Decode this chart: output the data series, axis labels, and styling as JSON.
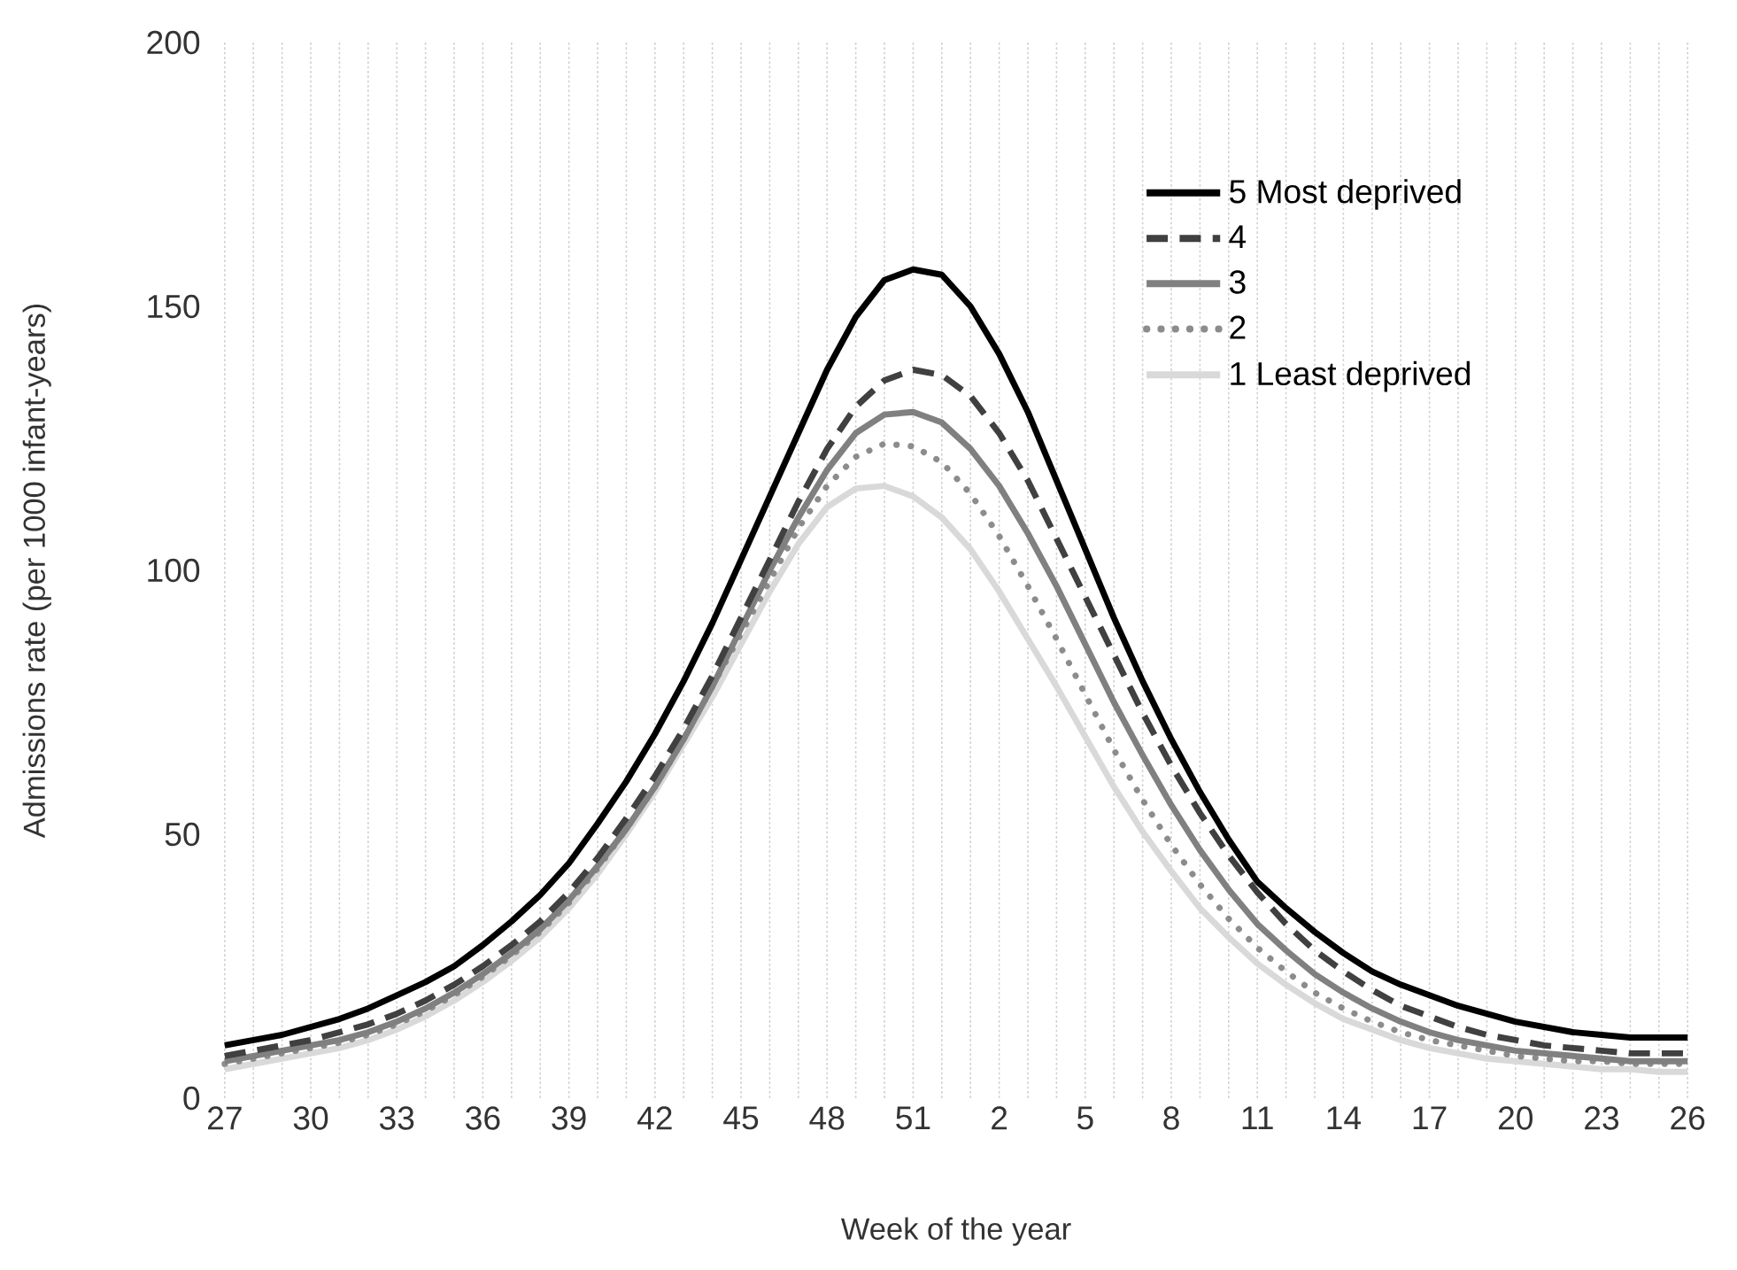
{
  "chart_data": {
    "type": "line",
    "xlabel": "Week of the year",
    "ylabel": "Admissions rate (per 1000 infant-years)",
    "categories": [
      "27",
      null,
      null,
      "30",
      null,
      null,
      "33",
      null,
      null,
      "36",
      null,
      null,
      "39",
      null,
      null,
      "42",
      null,
      null,
      "45",
      null,
      null,
      "48",
      null,
      null,
      "51",
      null,
      null,
      "2",
      null,
      null,
      "5",
      null,
      null,
      "8",
      null,
      null,
      "11",
      null,
      null,
      "14",
      null,
      null,
      "17",
      null,
      null,
      "20",
      null,
      null,
      "23",
      null,
      null,
      "26"
    ],
    "ylim": [
      0,
      200
    ],
    "yticks": [
      0,
      50,
      100,
      150,
      200
    ],
    "grid": "x",
    "legend": "top right",
    "marker": "none",
    "series": [
      {
        "name": "5 Most deprived",
        "color": "#000000",
        "line_style": "solid",
        "values": [
          10,
          11,
          12,
          13.5,
          15,
          17,
          19.5,
          22,
          25,
          29,
          33.5,
          38.5,
          44.5,
          52,
          60,
          69,
          79,
          90,
          102,
          114,
          126,
          138,
          148,
          155,
          157,
          156,
          150,
          141,
          130,
          117,
          104,
          91,
          79,
          68,
          58,
          49,
          41,
          36,
          31.5,
          27.5,
          24,
          21.5,
          19.5,
          17.5,
          16,
          14.5,
          13.5,
          12.5,
          12,
          11.5,
          11.5,
          11.5
        ]
      },
      {
        "name": "4",
        "color": "#404040",
        "line_style": "dashed",
        "values": [
          8,
          9,
          10,
          11,
          12.5,
          14,
          16,
          18.5,
          21.5,
          25,
          29,
          33.5,
          39,
          45.5,
          53,
          61,
          70,
          80,
          91,
          102,
          113,
          123,
          131,
          136,
          138,
          137,
          133,
          126,
          117,
          106,
          95,
          84,
          73,
          63,
          54,
          46,
          39,
          33,
          28,
          24,
          20.5,
          17.5,
          15.5,
          13.5,
          12,
          11,
          10,
          9.5,
          9,
          8.5,
          8.5,
          8.5
        ]
      },
      {
        "name": "3",
        "color": "#808080",
        "line_style": "solid",
        "values": [
          7,
          8,
          9,
          10,
          11,
          12.5,
          14.5,
          17,
          20,
          23.5,
          27.5,
          32,
          37.5,
          44,
          51,
          59,
          68,
          78,
          89,
          100,
          110,
          119,
          126,
          129.5,
          130,
          128,
          123,
          116,
          107,
          97,
          86,
          75,
          65,
          55.5,
          47,
          39.5,
          33,
          28,
          23.5,
          20,
          17,
          14.5,
          12.5,
          11,
          10,
          9,
          8.5,
          8,
          7.5,
          7,
          7,
          7
        ]
      },
      {
        "name": "2",
        "color": "#8c8c8c",
        "line_style": "dotted",
        "values": [
          6.5,
          7.5,
          8.5,
          9.5,
          10.5,
          12,
          14,
          16.5,
          19.5,
          23,
          27,
          31.5,
          37,
          43.5,
          51,
          59,
          68,
          78,
          88,
          98,
          108,
          116,
          121.5,
          124,
          123.5,
          120.5,
          114.5,
          106.5,
          97,
          87,
          76.5,
          66,
          56.5,
          48,
          40.5,
          34,
          28.5,
          24,
          20,
          17,
          14.5,
          12.5,
          11,
          10,
          9,
          8,
          7.5,
          7,
          7,
          6.5,
          6.5,
          6.5
        ]
      },
      {
        "name": "1 Least deprived",
        "color": "#d9d9d9",
        "line_style": "solid",
        "values": [
          5.5,
          6.5,
          7.5,
          8.5,
          9.5,
          11,
          13,
          15.5,
          18.5,
          22,
          26,
          30.5,
          36,
          42.5,
          50,
          58,
          67,
          76,
          86,
          96,
          105,
          112,
          115.5,
          116,
          114,
          110,
          104,
          96,
          87,
          78,
          68.5,
          59,
          50.5,
          43,
          36,
          30.5,
          25.5,
          21.5,
          18,
          15,
          13,
          11,
          9.5,
          8.5,
          7.5,
          7,
          6.5,
          6,
          5.5,
          5.5,
          5,
          5
        ]
      }
    ]
  }
}
